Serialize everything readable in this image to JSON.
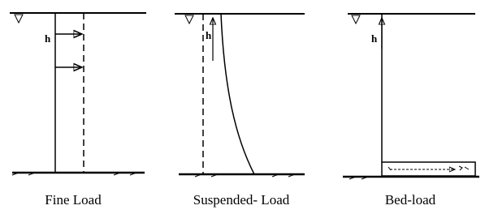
{
  "panels": [
    {
      "label": "h",
      "caption": "Fine Load"
    },
    {
      "label": "h",
      "caption": "Suspended- Load"
    },
    {
      "label": "h",
      "caption": "Bed-load"
    }
  ]
}
